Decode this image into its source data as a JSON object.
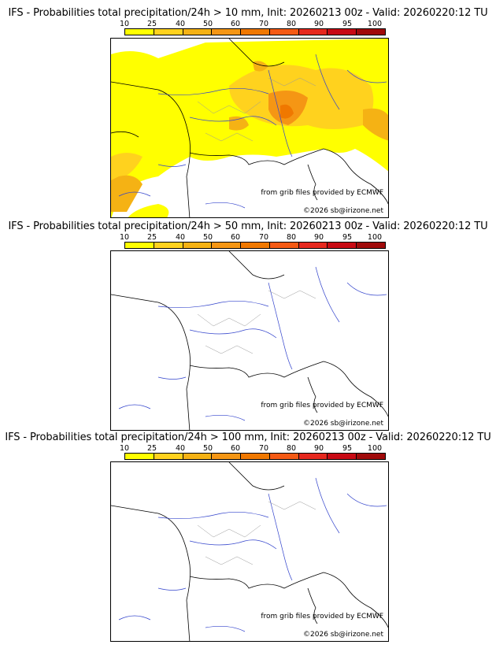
{
  "colorbar": {
    "ticks": [
      "10",
      "25",
      "40",
      "50",
      "60",
      "70",
      "80",
      "90",
      "95",
      "100"
    ],
    "colors": [
      "#ffff00",
      "#ffd21e",
      "#f5b214",
      "#f59614",
      "#f07800",
      "#f55a14",
      "#e6281e",
      "#c80a14",
      "#a00a0a",
      "#780a0a"
    ]
  },
  "panels": [
    {
      "title": "IFS - Probabilities total precipitation/24h > 10 mm, Init: 20260213 00z - Valid: 20260220:12 TU",
      "credit": "from grib files provided by ECMWF",
      "copyright": "©2026 sb@irizone.net",
      "threshold_mm": 10
    },
    {
      "title": "IFS - Probabilities total precipitation/24h > 50 mm, Init: 20260213 00z - Valid: 20260220:12 TU",
      "credit": "from grib files provided by ECMWF",
      "copyright": "©2026 sb@irizone.net",
      "threshold_mm": 50
    },
    {
      "title": "IFS - Probabilities total precipitation/24h > 100 mm, Init: 20260213 00z - Valid: 20260220:12 TU",
      "credit": "from grib files provided by ECMWF",
      "copyright": "©2026 sb@irizone.net",
      "threshold_mm": 100
    }
  ]
}
